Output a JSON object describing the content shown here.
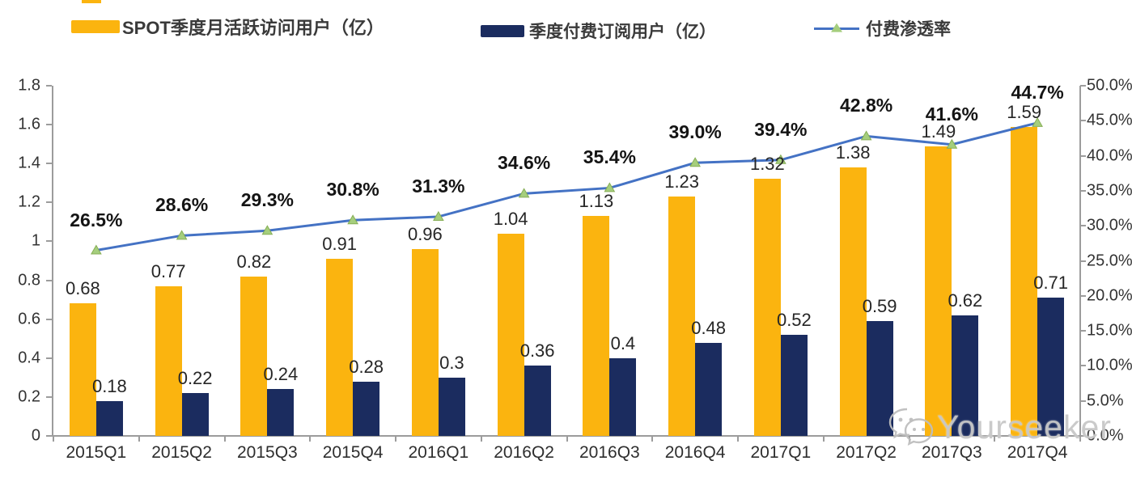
{
  "legend": {
    "items": [
      {
        "label": "SPOT季度月活跃访问用户（亿）",
        "swatch": "yellow-bar-swatch"
      },
      {
        "label": "季度付费订阅用户（亿）",
        "swatch": "navy-bar-swatch"
      },
      {
        "label": "付费渗透率",
        "swatch": "line-marker-swatch"
      }
    ]
  },
  "colors": {
    "mau_bar": "#FBB40F",
    "subs_bar": "#1B2C5F",
    "penetration_line": "#4472C4",
    "penetration_marker_fill": "#A5CE7D",
    "penetration_marker_stroke": "#86AE55",
    "axis": "#9C9C9C",
    "watermark": "#C5C5C5"
  },
  "chart_data": {
    "type": "bar",
    "subtype": "combo-bar-line-dual-axis",
    "categories": [
      "2015Q1",
      "2015Q2",
      "2015Q3",
      "2015Q4",
      "2016Q1",
      "2016Q2",
      "2016Q3",
      "2016Q4",
      "2017Q1",
      "2017Q2",
      "2017Q3",
      "2017Q4"
    ],
    "series": [
      {
        "name": "SPOT季度月活跃访问用户（亿）",
        "type": "bar",
        "axis": "left",
        "color": "#FBB40F",
        "values": [
          0.68,
          0.77,
          0.82,
          0.91,
          0.96,
          1.04,
          1.13,
          1.23,
          1.32,
          1.38,
          1.49,
          1.59
        ],
        "labels": [
          "0.68",
          "0.77",
          "0.82",
          "0.91",
          "0.96",
          "1.04",
          "1.13",
          "1.23",
          "1.32",
          "1.38",
          "1.49",
          "1.59"
        ]
      },
      {
        "name": "季度付费订阅用户（亿）",
        "type": "bar",
        "axis": "left",
        "color": "#1B2C5F",
        "values": [
          0.18,
          0.22,
          0.24,
          0.28,
          0.3,
          0.36,
          0.4,
          0.48,
          0.52,
          0.59,
          0.62,
          0.71
        ],
        "labels": [
          "0.18",
          "0.22",
          "0.24",
          "0.28",
          "0.3",
          "0.36",
          "0.4",
          "0.48",
          "0.52",
          "0.59",
          "0.62",
          "0.71"
        ]
      },
      {
        "name": "付费渗透率",
        "type": "line",
        "axis": "right",
        "color": "#4472C4",
        "marker": "triangle",
        "marker_fill": "#A5CE7D",
        "marker_stroke": "#86AE55",
        "values": [
          26.5,
          28.6,
          29.3,
          30.8,
          31.3,
          34.6,
          35.4,
          39.0,
          39.4,
          42.8,
          41.6,
          44.7
        ],
        "labels": [
          "26.5%",
          "28.6%",
          "29.3%",
          "30.8%",
          "31.3%",
          "34.6%",
          "35.4%",
          "39.0%",
          "39.4%",
          "42.8%",
          "41.6%",
          "44.7%"
        ]
      }
    ],
    "left_axis": {
      "min": 0,
      "max": 1.8,
      "step": 0.2,
      "tick_labels": [
        "1.8",
        "1.6",
        "1.4",
        "1.2",
        "1",
        "0.8",
        "0.6",
        "0.4",
        "0.2",
        "0"
      ]
    },
    "right_axis": {
      "min": 0,
      "max": 50,
      "step": 5,
      "tick_labels": [
        "50.0%",
        "45.0%",
        "40.0%",
        "35.0%",
        "30.0%",
        "25.0%",
        "20.0%",
        "15.0%",
        "10.0%",
        "5.0%",
        "0.0%"
      ]
    },
    "grid": false,
    "legend_position": "top"
  },
  "watermark": {
    "text": "Yourseeker",
    "icon": "wechat-icon"
  }
}
